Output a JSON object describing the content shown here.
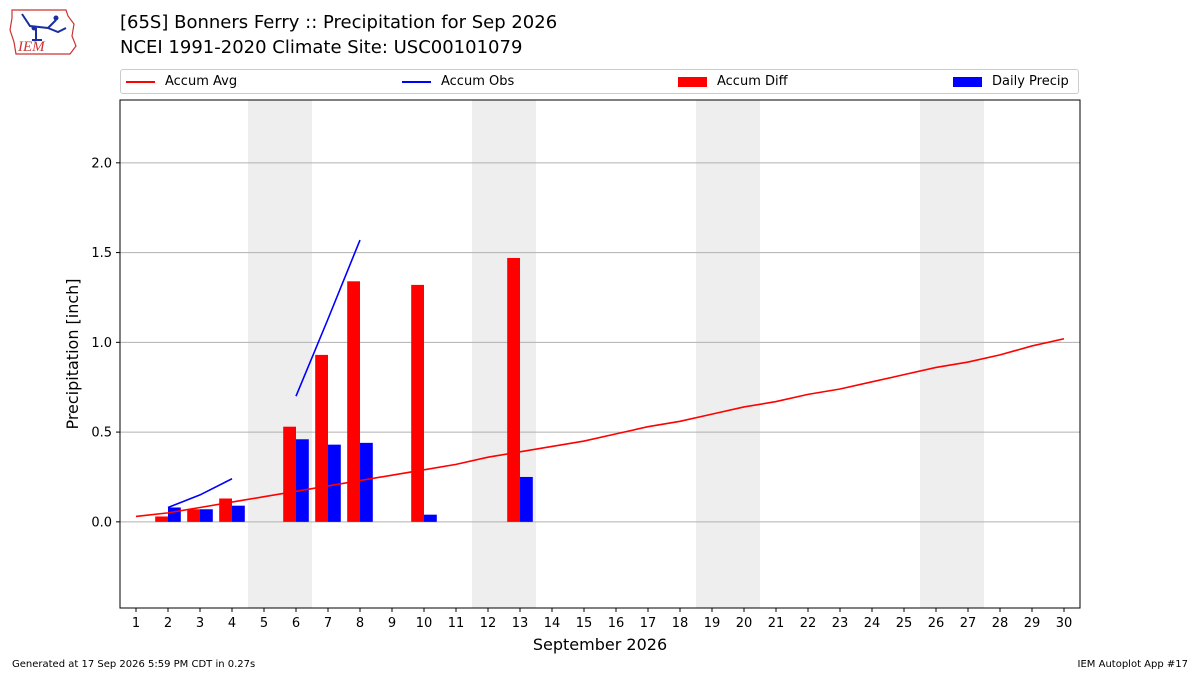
{
  "header": {
    "title": "[65S] Bonners Ferry :: Precipitation for Sep 2026",
    "subtitle": "NCEI 1991-2020 Climate Site: USC00101079",
    "logo_text": "IEM"
  },
  "legend": {
    "items": [
      {
        "label": "Accum Avg",
        "color": "#ff0000",
        "kind": "line"
      },
      {
        "label": "Accum Obs",
        "color": "#0000ff",
        "kind": "line"
      },
      {
        "label": "Accum Diff",
        "color": "#ff0000",
        "kind": "patch"
      },
      {
        "label": "Daily Precip",
        "color": "#0000ff",
        "kind": "patch"
      }
    ]
  },
  "footer": {
    "generated": "Generated at 17 Sep 2026 5:59 PM CDT in 0.27s",
    "app": "IEM Autoplot App #17"
  },
  "chart_data": {
    "type": "bar",
    "xlabel": "September 2026",
    "ylabel": "Precipitation [inch]",
    "xlim": [
      0.5,
      30.5
    ],
    "ylim": [
      -0.48,
      2.35
    ],
    "x_ticks": [
      1,
      2,
      3,
      4,
      5,
      6,
      7,
      8,
      9,
      10,
      11,
      12,
      13,
      14,
      15,
      16,
      17,
      18,
      19,
      20,
      21,
      22,
      23,
      24,
      25,
      26,
      27,
      28,
      29,
      30
    ],
    "y_ticks": [
      0.0,
      0.5,
      1.0,
      1.5,
      2.0
    ],
    "y_tick_labels": [
      "0.0",
      "0.5",
      "1.0",
      "1.5",
      "2.0"
    ],
    "grid": "horizontal",
    "legend_position": "top",
    "weekend_shading": [
      [
        5,
        6
      ],
      [
        12,
        13
      ],
      [
        19,
        20
      ],
      [
        26,
        27
      ]
    ],
    "shade_color": "#eeeeee",
    "series": [
      {
        "name": "Accum Avg",
        "kind": "line",
        "color": "#ff0000",
        "x": [
          1,
          2,
          3,
          4,
          5,
          6,
          7,
          8,
          9,
          10,
          11,
          12,
          13,
          14,
          15,
          16,
          17,
          18,
          19,
          20,
          21,
          22,
          23,
          24,
          25,
          26,
          27,
          28,
          29,
          30
        ],
        "values": [
          0.03,
          0.05,
          0.08,
          0.11,
          0.14,
          0.17,
          0.2,
          0.23,
          0.26,
          0.29,
          0.32,
          0.36,
          0.39,
          0.42,
          0.45,
          0.49,
          0.53,
          0.56,
          0.6,
          0.64,
          0.67,
          0.71,
          0.74,
          0.78,
          0.82,
          0.86,
          0.89,
          0.93,
          0.98,
          1.02
        ]
      },
      {
        "name": "Accum Obs",
        "kind": "line",
        "color": "#0000ff",
        "segments": [
          {
            "x": [
              2,
              3,
              4
            ],
            "values": [
              0.08,
              0.15,
              0.24
            ]
          },
          {
            "x": [
              6,
              7,
              8
            ],
            "values": [
              0.7,
              1.13,
              1.57
            ]
          }
        ]
      },
      {
        "name": "Accum Diff",
        "kind": "bar",
        "color": "#ff0000",
        "offset": -0.2,
        "x": [
          2,
          3,
          4,
          6,
          7,
          8,
          10,
          13
        ],
        "values": [
          0.03,
          0.07,
          0.13,
          0.53,
          0.93,
          1.34,
          1.32,
          1.47
        ]
      },
      {
        "name": "Daily Precip",
        "kind": "bar",
        "color": "#0000ff",
        "offset": 0.2,
        "x": [
          2,
          3,
          4,
          6,
          7,
          8,
          10,
          13
        ],
        "values": [
          0.08,
          0.07,
          0.09,
          0.46,
          0.43,
          0.44,
          0.04,
          0.25
        ]
      }
    ]
  }
}
